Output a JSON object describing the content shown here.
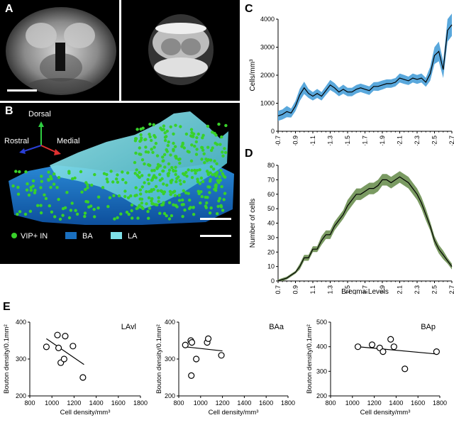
{
  "panels": {
    "A": "A",
    "B": "B",
    "C": "C",
    "D": "D",
    "E": "E"
  },
  "panel_b": {
    "axes": {
      "up": "Dorsal",
      "left": "Rostral",
      "right": "Medial"
    },
    "legend": [
      {
        "label": "VIP+ IN",
        "color": "#39d12a"
      },
      {
        "label": "BA",
        "color": "#1a6fbf"
      },
      {
        "label": "LA",
        "color": "#7ee0e8"
      }
    ]
  },
  "colors": {
    "blue_band": "#5aa8dc",
    "green_band": "#7a9a62",
    "line": "#000000"
  },
  "chart_data": [
    {
      "id": "C",
      "type": "line",
      "ylabel": "Cells/mm³",
      "xlabel": "",
      "ylim": [
        0,
        4000
      ],
      "yticks": [
        0,
        1000,
        2000,
        3000,
        4000
      ],
      "xticklabels": [
        "-0.7",
        "-0.9",
        "-1.1",
        "-1.3",
        "-1.5",
        "-1.7",
        "-1.9",
        "-2.1",
        "-2.3",
        "-2.5",
        "-2.7"
      ],
      "x": [
        -0.7,
        -0.75,
        -0.8,
        -0.85,
        -0.9,
        -0.95,
        -1.0,
        -1.05,
        -1.1,
        -1.15,
        -1.2,
        -1.25,
        -1.3,
        -1.35,
        -1.4,
        -1.45,
        -1.5,
        -1.55,
        -1.6,
        -1.65,
        -1.7,
        -1.75,
        -1.8,
        -1.85,
        -1.9,
        -1.95,
        -2.0,
        -2.05,
        -2.1,
        -2.15,
        -2.2,
        -2.25,
        -2.3,
        -2.35,
        -2.4,
        -2.45,
        -2.5,
        -2.55,
        -2.6,
        -2.65,
        -2.7
      ],
      "mean": [
        550,
        600,
        700,
        650,
        900,
        1300,
        1550,
        1350,
        1250,
        1350,
        1250,
        1450,
        1650,
        1550,
        1400,
        1500,
        1400,
        1400,
        1500,
        1550,
        1500,
        1450,
        1600,
        1600,
        1650,
        1700,
        1700,
        1750,
        1900,
        1850,
        1800,
        1900,
        1850,
        1900,
        1750,
        2050,
        2700,
        2850,
        2200,
        3600,
        3800
      ],
      "err": [
        180,
        180,
        200,
        160,
        180,
        220,
        220,
        160,
        150,
        160,
        150,
        160,
        180,
        170,
        150,
        160,
        150,
        150,
        150,
        150,
        150,
        150,
        150,
        160,
        160,
        150,
        150,
        150,
        160,
        160,
        150,
        160,
        160,
        160,
        160,
        250,
        300,
        350,
        300,
        400,
        400
      ]
    },
    {
      "id": "D",
      "type": "line",
      "ylabel": "Number of cells",
      "xlabel": "Bregma Levels",
      "ylim": [
        0,
        80
      ],
      "yticks": [
        0,
        10,
        20,
        30,
        40,
        50,
        60,
        70,
        80
      ],
      "xticklabels": [
        "-0.7",
        "-0.9",
        "-1.1",
        "-1.3",
        "-1.5",
        "-1.7",
        "-1.9",
        "-2.1",
        "-2.3",
        "-2.5",
        "-2.7"
      ],
      "x": [
        -0.7,
        -0.75,
        -0.8,
        -0.85,
        -0.9,
        -0.95,
        -1.0,
        -1.05,
        -1.1,
        -1.15,
        -1.2,
        -1.25,
        -1.3,
        -1.35,
        -1.4,
        -1.45,
        -1.5,
        -1.55,
        -1.6,
        -1.65,
        -1.7,
        -1.75,
        -1.8,
        -1.85,
        -1.9,
        -1.95,
        -2.0,
        -2.05,
        -2.1,
        -2.15,
        -2.2,
        -2.25,
        -2.3,
        -2.35,
        -2.4,
        -2.45,
        -2.5,
        -2.55,
        -2.6,
        -2.65,
        -2.7
      ],
      "mean": [
        0,
        1,
        2,
        4,
        6,
        10,
        16,
        16,
        22,
        22,
        28,
        32,
        32,
        38,
        42,
        46,
        52,
        56,
        60,
        60,
        62,
        64,
        64,
        66,
        70,
        70,
        68,
        70,
        72,
        70,
        68,
        64,
        60,
        54,
        46,
        38,
        28,
        22,
        18,
        14,
        10
      ],
      "err": [
        1,
        1,
        1,
        1,
        1,
        2,
        2,
        2,
        2,
        2,
        3,
        3,
        3,
        3,
        3,
        3,
        4,
        4,
        4,
        4,
        4,
        4,
        4,
        4,
        4,
        4,
        4,
        4,
        4,
        4,
        4,
        4,
        4,
        4,
        4,
        3,
        3,
        3,
        3,
        2,
        2
      ]
    },
    {
      "id": "E1",
      "type": "scatter",
      "title": "LAvl",
      "ylabel": "Bouton density/0.1mm²",
      "xlabel": "Cell density/mm³",
      "xlim": [
        800,
        1800
      ],
      "ylim": [
        200,
        400
      ],
      "xticks": [
        800,
        1000,
        1200,
        1400,
        1600,
        1800
      ],
      "yticks": [
        200,
        300,
        400
      ],
      "points": [
        [
          950,
          333
        ],
        [
          1050,
          365
        ],
        [
          1060,
          330
        ],
        [
          1080,
          290
        ],
        [
          1110,
          300
        ],
        [
          1120,
          362
        ],
        [
          1190,
          335
        ],
        [
          1280,
          250
        ]
      ],
      "fit": [
        [
          950,
          355
        ],
        [
          1290,
          285
        ]
      ]
    },
    {
      "id": "E2",
      "type": "scatter",
      "title": "BAa",
      "ylabel": "Bouton density/0.1mm²",
      "xlabel": "Cell density/mm³",
      "xlim": [
        800,
        1800
      ],
      "ylim": [
        200,
        400
      ],
      "xticks": [
        800,
        1000,
        1200,
        1400,
        1600,
        1800
      ],
      "yticks": [
        200,
        300,
        400
      ],
      "points": [
        [
          860,
          338
        ],
        [
          910,
          350
        ],
        [
          915,
          255
        ],
        [
          920,
          345
        ],
        [
          960,
          300
        ],
        [
          1060,
          345
        ],
        [
          1070,
          355
        ],
        [
          1190,
          310
        ]
      ],
      "fit": [
        [
          860,
          333
        ],
        [
          1200,
          322
        ]
      ]
    },
    {
      "id": "E3",
      "type": "scatter",
      "title": "BAp",
      "ylabel": "Bouton density/0.1mm²",
      "xlabel": "Cell density/mm³",
      "xlim": [
        800,
        1800
      ],
      "ylim": [
        200,
        500
      ],
      "xticks": [
        800,
        1000,
        1200,
        1400,
        1600,
        1800
      ],
      "yticks": [
        200,
        300,
        400,
        500
      ],
      "points": [
        [
          1050,
          400
        ],
        [
          1180,
          408
        ],
        [
          1250,
          395
        ],
        [
          1280,
          380
        ],
        [
          1350,
          430
        ],
        [
          1380,
          400
        ],
        [
          1480,
          310
        ],
        [
          1770,
          380
        ]
      ],
      "fit": [
        [
          1050,
          400
        ],
        [
          1780,
          370
        ]
      ]
    }
  ]
}
